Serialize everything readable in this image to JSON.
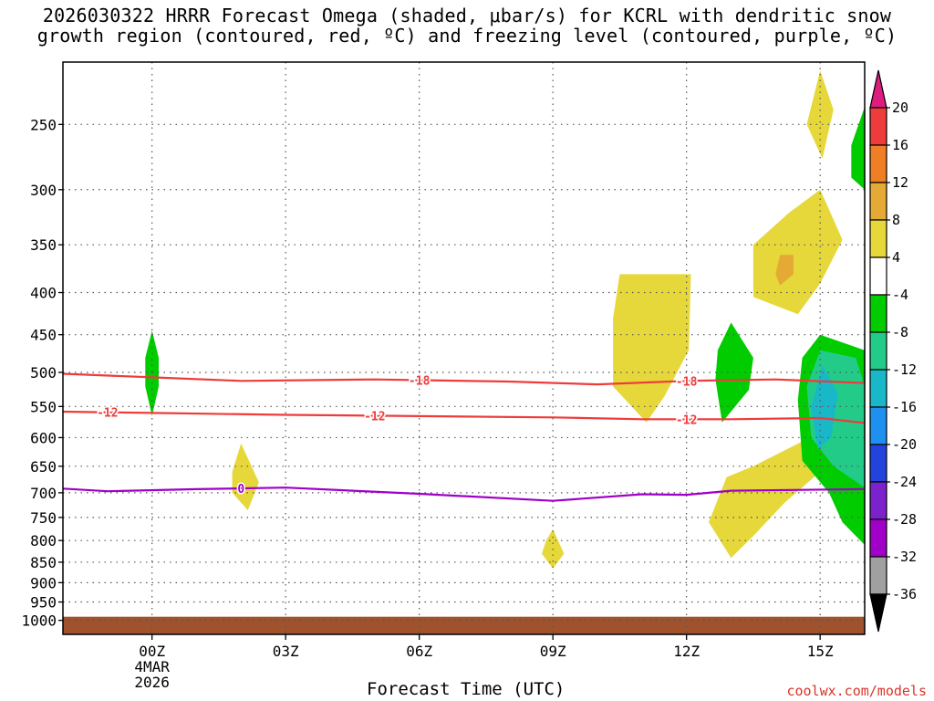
{
  "title": {
    "line1": "2026030322 HRRR Forecast Omega (shaded, μbar/s) for KCRL with dendritic snow",
    "line2": "growth region (contoured, red, ºC) and freezing level (contoured, purple, ºC)"
  },
  "credit": "coolwx.com/models",
  "chart_data": {
    "type": "heatmap",
    "xlabel": "Forecast Time (UTC)",
    "x_ticks": [
      {
        "hour": 0,
        "label": "00Z",
        "sub1": "4MAR",
        "sub2": "2026"
      },
      {
        "hour": 3,
        "label": "03Z"
      },
      {
        "hour": 6,
        "label": "06Z"
      },
      {
        "hour": 9,
        "label": "09Z"
      },
      {
        "hour": 12,
        "label": "12Z"
      },
      {
        "hour": 15,
        "label": "15Z"
      }
    ],
    "x_range_hours": [
      -2,
      16
    ],
    "y_scale": "log-pressure",
    "y_range_mb": [
      1040,
      210
    ],
    "y_ticks": [
      250,
      300,
      350,
      400,
      450,
      500,
      550,
      600,
      650,
      700,
      750,
      800,
      850,
      900,
      950,
      1000
    ],
    "grid": true,
    "colorbar": {
      "labels": [
        "20",
        "16",
        "12",
        "8",
        "4",
        "-4",
        "-8",
        "-12",
        "-16",
        "-20",
        "-24",
        "-28",
        "-32",
        "-36"
      ],
      "colors": [
        "#dc1e7e",
        "#ee3b3b",
        "#f07e25",
        "#e5a935",
        "#e6d83a",
        "#ffffff",
        "#00cc00",
        "#22cc88",
        "#18b8c8",
        "#1e90f0",
        "#2244dd",
        "#7b22cc",
        "#a000c8",
        "#a0a0a0",
        "#000000"
      ]
    },
    "contours": [
      {
        "label": "-18",
        "color": "#ee3b3b",
        "points": [
          [
            -2,
            502
          ],
          [
            0,
            507
          ],
          [
            2,
            512
          ],
          [
            5,
            510
          ],
          [
            8,
            513
          ],
          [
            10,
            517
          ],
          [
            12,
            512
          ],
          [
            14,
            510
          ],
          [
            16,
            515
          ]
        ],
        "label_hours": [
          6,
          12
        ]
      },
      {
        "label": "-12",
        "color": "#ee3b3b",
        "points": [
          [
            -2,
            558
          ],
          [
            0,
            560
          ],
          [
            3,
            563
          ],
          [
            6,
            565
          ],
          [
            9,
            567
          ],
          [
            11,
            570
          ],
          [
            13,
            570
          ],
          [
            15,
            568
          ],
          [
            16,
            576
          ]
        ],
        "label_hours": [
          -1,
          5,
          12
        ]
      },
      {
        "label": "0",
        "color": "#a000c8",
        "points": [
          [
            -2,
            692
          ],
          [
            -1,
            697
          ],
          [
            1,
            693
          ],
          [
            3,
            690
          ],
          [
            6,
            702
          ],
          [
            9,
            716
          ],
          [
            11,
            703
          ],
          [
            12,
            704
          ],
          [
            13,
            696
          ],
          [
            16,
            693
          ]
        ],
        "label_hours": [
          2
        ]
      }
    ],
    "omega_regions": [
      {
        "value": "-4 to -8",
        "color": "#00cc00",
        "points": [
          [
            0,
            445
          ],
          [
            0.15,
            480
          ],
          [
            0.15,
            520
          ],
          [
            0,
            565
          ],
          [
            -0.15,
            520
          ],
          [
            -0.15,
            480
          ]
        ]
      },
      {
        "value": "4 to 8",
        "color": "#e6d83a",
        "points": [
          [
            2,
            610
          ],
          [
            2.4,
            680
          ],
          [
            2.15,
            735
          ],
          [
            1.8,
            700
          ],
          [
            1.8,
            660
          ]
        ]
      },
      {
        "value": "4 to 8",
        "color": "#e6d83a",
        "points": [
          [
            9,
            775
          ],
          [
            9.25,
            830
          ],
          [
            9,
            865
          ],
          [
            8.75,
            830
          ],
          [
            8.85,
            800
          ]
        ]
      },
      {
        "value": "4 to 8",
        "color": "#e6d83a",
        "points": [
          [
            10.5,
            380
          ],
          [
            12.1,
            380
          ],
          [
            12.05,
            470
          ],
          [
            11.5,
            535
          ],
          [
            11.1,
            575
          ],
          [
            10.35,
            520
          ],
          [
            10.35,
            430
          ]
        ]
      },
      {
        "value": "-4 to -8",
        "color": "#00cc00",
        "points": [
          [
            13,
            435
          ],
          [
            13.5,
            480
          ],
          [
            13.4,
            525
          ],
          [
            12.8,
            575
          ],
          [
            12.65,
            510
          ],
          [
            12.7,
            470
          ]
        ]
      },
      {
        "value": "4 to 8",
        "color": "#e6d83a",
        "points": [
          [
            14.9,
            595
          ],
          [
            15,
            660
          ],
          [
            14.2,
            720
          ],
          [
            13.5,
            790
          ],
          [
            13,
            840
          ],
          [
            12.5,
            760
          ],
          [
            12.9,
            670
          ],
          [
            13.5,
            650
          ]
        ]
      },
      {
        "value": "4 to 8",
        "color": "#e6d83a",
        "points": [
          [
            15,
            300
          ],
          [
            15.5,
            345
          ],
          [
            15,
            390
          ],
          [
            14.5,
            425
          ],
          [
            13.5,
            405
          ],
          [
            13.5,
            350
          ],
          [
            14.3,
            320
          ]
        ]
      },
      {
        "value": "8 to 12",
        "color": "#e5a935",
        "points": [
          [
            14.1,
            360
          ],
          [
            14.4,
            360
          ],
          [
            14.4,
            380
          ],
          [
            14.1,
            392
          ],
          [
            14,
            380
          ]
        ]
      },
      {
        "value": "4 to 8",
        "color": "#e6d83a",
        "points": [
          [
            15,
            215
          ],
          [
            15.3,
            240
          ],
          [
            15.05,
            275
          ],
          [
            14.7,
            250
          ]
        ]
      },
      {
        "value": "-4 to -8",
        "color": "#00cc00",
        "points": [
          [
            16,
            238
          ],
          [
            16,
            300
          ],
          [
            15.7,
            290
          ],
          [
            15.7,
            265
          ]
        ]
      },
      {
        "value": "-4 to -8",
        "color": "#00cc00",
        "points": [
          [
            15,
            450
          ],
          [
            16,
            470
          ],
          [
            16,
            810
          ],
          [
            15.5,
            760
          ],
          [
            15.2,
            700
          ],
          [
            14.6,
            640
          ],
          [
            14.5,
            540
          ],
          [
            14.6,
            480
          ]
        ]
      },
      {
        "value": "-8 to -12",
        "color": "#22cc88",
        "points": [
          [
            15,
            470
          ],
          [
            15.8,
            480
          ],
          [
            16,
            520
          ],
          [
            16,
            690
          ],
          [
            15.3,
            650
          ],
          [
            14.8,
            600
          ],
          [
            14.7,
            520
          ]
        ]
      },
      {
        "value": "-12 to -16",
        "color": "#18b8c8",
        "points": [
          [
            15.05,
            490
          ],
          [
            15.4,
            530
          ],
          [
            15.25,
            600
          ],
          [
            14.95,
            620
          ],
          [
            14.8,
            550
          ]
        ]
      }
    ],
    "surface": {
      "color": "#a0522d",
      "top_mb": 990
    }
  }
}
